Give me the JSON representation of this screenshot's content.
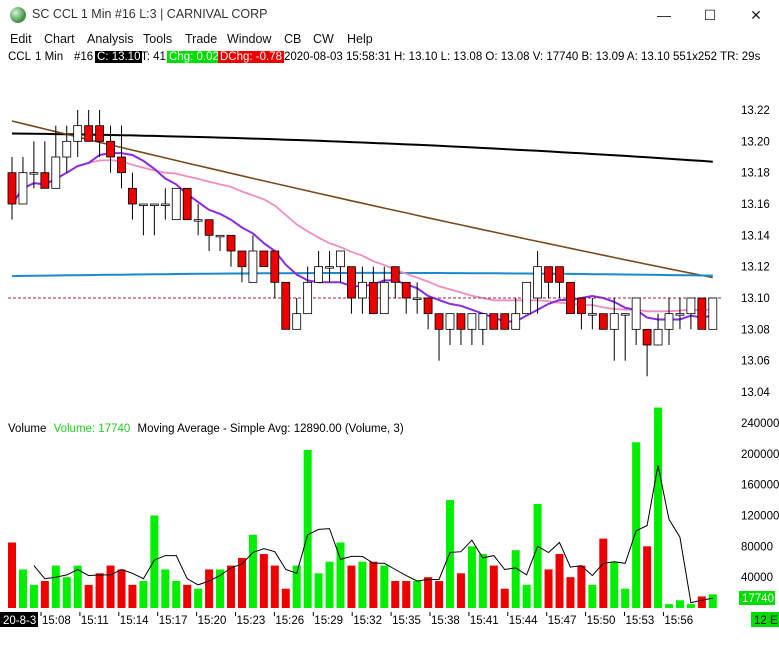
{
  "window": {
    "title": "SC CCL  1 Min  #16  L:3 | CARNIVAL CORP",
    "minimize_label": "—",
    "maximize_label": "☐",
    "close_label": "✕"
  },
  "menu": [
    "Edit",
    "Chart",
    "Analysis",
    "Tools",
    "Trade",
    "Window",
    "CB",
    "CW",
    "Help"
  ],
  "info": {
    "symbol": "CCL",
    "interval": "1 Min",
    "chart_num": "#16",
    "close": "C: 13.10",
    "ticks": "T: 41",
    "chg": "Chg: 0.02",
    "dchg": "DChg: -0.78",
    "rest": "2020-08-03 15:58:31 H: 13.10 L: 13.08 O: 13.08 V: 17740 B: 13.09 A: 13.10 551x252 TR: 29s"
  },
  "volume_legend": {
    "label": "Volume",
    "value": "Volume: 17740",
    "ma": "Moving Average - Simple  Avg: 12890.00  (Volume, 3)"
  },
  "colors": {
    "up": "#ffffff",
    "down": "#ee0000",
    "vol_up": "#00ee00",
    "vol_down": "#ee0000",
    "ma_purple": "#8a2be2",
    "ma_pink": "#f08cc0",
    "ma_brown": "#7a4a1a",
    "ma_black": "#000000",
    "ma_blue": "#1a8ad0",
    "last_line": "#a02050"
  },
  "chart_data": {
    "type": "candlestick",
    "price_ticks": [
      "13.22",
      "13.20",
      "13.18",
      "13.16",
      "13.14",
      "13.12",
      "13.10",
      "13.08",
      "13.06",
      "13.04"
    ],
    "price_range": [
      13.04,
      13.22
    ],
    "volume_ticks": [
      "240000",
      "200000",
      "160000",
      "120000",
      "80000",
      "40000"
    ],
    "volume_range": [
      0,
      240000
    ],
    "last_volume_label": "17740",
    "date_label": "20-8-3",
    "time_labels": [
      "15:08",
      "15:11",
      "15:14",
      "15:17",
      "15:20",
      "15:23",
      "15:26",
      "15:29",
      "15:32",
      "15:35",
      "15:38",
      "15:41",
      "15:44",
      "15:47",
      "15:50",
      "15:53",
      "15:56"
    ],
    "corner_label": "12 E",
    "candles": [
      {
        "o": 13.18,
        "h": 13.19,
        "l": 13.15,
        "c": 13.16
      },
      {
        "o": 13.16,
        "h": 13.19,
        "l": 13.16,
        "c": 13.18
      },
      {
        "o": 13.18,
        "h": 13.2,
        "l": 13.17,
        "c": 13.18
      },
      {
        "o": 13.18,
        "h": 13.2,
        "l": 13.17,
        "c": 13.17
      },
      {
        "o": 13.17,
        "h": 13.21,
        "l": 13.17,
        "c": 13.19
      },
      {
        "o": 13.19,
        "h": 13.21,
        "l": 13.18,
        "c": 13.2
      },
      {
        "o": 13.2,
        "h": 13.22,
        "l": 13.19,
        "c": 13.21
      },
      {
        "o": 13.21,
        "h": 13.22,
        "l": 13.2,
        "c": 13.2
      },
      {
        "o": 13.21,
        "h": 13.22,
        "l": 13.19,
        "c": 13.2
      },
      {
        "o": 13.2,
        "h": 13.21,
        "l": 13.18,
        "c": 13.19
      },
      {
        "o": 13.19,
        "h": 13.21,
        "l": 13.17,
        "c": 13.18
      },
      {
        "o": 13.17,
        "h": 13.18,
        "l": 13.15,
        "c": 13.16
      },
      {
        "o": 13.16,
        "h": 13.16,
        "l": 13.14,
        "c": 13.16
      },
      {
        "o": 13.16,
        "h": 13.16,
        "l": 13.14,
        "c": 13.16
      },
      {
        "o": 13.16,
        "h": 13.17,
        "l": 13.15,
        "c": 13.16
      },
      {
        "o": 13.15,
        "h": 13.17,
        "l": 13.15,
        "c": 13.17
      },
      {
        "o": 13.17,
        "h": 13.17,
        "l": 13.15,
        "c": 13.15
      },
      {
        "o": 13.15,
        "h": 13.16,
        "l": 13.14,
        "c": 13.15
      },
      {
        "o": 13.15,
        "h": 13.15,
        "l": 13.13,
        "c": 13.14
      },
      {
        "o": 13.14,
        "h": 13.14,
        "l": 13.13,
        "c": 13.14
      },
      {
        "o": 13.14,
        "h": 13.14,
        "l": 13.12,
        "c": 13.13
      },
      {
        "o": 13.13,
        "h": 13.13,
        "l": 13.11,
        "c": 13.12
      },
      {
        "o": 13.11,
        "h": 13.14,
        "l": 13.11,
        "c": 13.13
      },
      {
        "o": 13.13,
        "h": 13.13,
        "l": 13.12,
        "c": 13.12
      },
      {
        "o": 13.13,
        "h": 13.13,
        "l": 13.1,
        "c": 13.11
      },
      {
        "o": 13.11,
        "h": 13.11,
        "l": 13.08,
        "c": 13.08
      },
      {
        "o": 13.08,
        "h": 13.1,
        "l": 13.08,
        "c": 13.09
      },
      {
        "o": 13.09,
        "h": 13.12,
        "l": 13.09,
        "c": 13.11
      },
      {
        "o": 13.11,
        "h": 13.13,
        "l": 13.11,
        "c": 13.12
      },
      {
        "o": 13.12,
        "h": 13.13,
        "l": 13.11,
        "c": 13.12
      },
      {
        "o": 13.12,
        "h": 13.13,
        "l": 13.11,
        "c": 13.13
      },
      {
        "o": 13.12,
        "h": 13.12,
        "l": 13.09,
        "c": 13.1
      },
      {
        "o": 13.1,
        "h": 13.12,
        "l": 13.09,
        "c": 13.11
      },
      {
        "o": 13.11,
        "h": 13.12,
        "l": 13.09,
        "c": 13.09
      },
      {
        "o": 13.09,
        "h": 13.12,
        "l": 13.09,
        "c": 13.11
      },
      {
        "o": 13.12,
        "h": 13.12,
        "l": 13.1,
        "c": 13.11
      },
      {
        "o": 13.11,
        "h": 13.11,
        "l": 13.09,
        "c": 13.1
      },
      {
        "o": 13.1,
        "h": 13.11,
        "l": 13.09,
        "c": 13.1
      },
      {
        "o": 13.1,
        "h": 13.1,
        "l": 13.08,
        "c": 13.09
      },
      {
        "o": 13.09,
        "h": 13.09,
        "l": 13.06,
        "c": 13.08
      },
      {
        "o": 13.08,
        "h": 13.09,
        "l": 13.07,
        "c": 13.09
      },
      {
        "o": 13.09,
        "h": 13.09,
        "l": 13.07,
        "c": 13.08
      },
      {
        "o": 13.08,
        "h": 13.09,
        "l": 13.07,
        "c": 13.09
      },
      {
        "o": 13.08,
        "h": 13.09,
        "l": 13.07,
        "c": 13.09
      },
      {
        "o": 13.09,
        "h": 13.09,
        "l": 13.08,
        "c": 13.08
      },
      {
        "o": 13.09,
        "h": 13.09,
        "l": 13.08,
        "c": 13.08
      },
      {
        "o": 13.08,
        "h": 13.1,
        "l": 13.08,
        "c": 13.09
      },
      {
        "o": 13.09,
        "h": 13.11,
        "l": 13.09,
        "c": 13.11
      },
      {
        "o": 13.1,
        "h": 13.13,
        "l": 13.09,
        "c": 13.12
      },
      {
        "o": 13.12,
        "h": 13.12,
        "l": 13.1,
        "c": 13.11
      },
      {
        "o": 13.12,
        "h": 13.12,
        "l": 13.1,
        "c": 13.11
      },
      {
        "o": 13.11,
        "h": 13.11,
        "l": 13.09,
        "c": 13.09
      },
      {
        "o": 13.1,
        "h": 13.1,
        "l": 13.08,
        "c": 13.09
      },
      {
        "o": 13.09,
        "h": 13.1,
        "l": 13.08,
        "c": 13.09
      },
      {
        "o": 13.09,
        "h": 13.09,
        "l": 13.08,
        "c": 13.08
      },
      {
        "o": 13.08,
        "h": 13.1,
        "l": 13.06,
        "c": 13.09
      },
      {
        "o": 13.09,
        "h": 13.09,
        "l": 13.06,
        "c": 13.09
      },
      {
        "o": 13.08,
        "h": 13.1,
        "l": 13.07,
        "c": 13.1
      },
      {
        "o": 13.08,
        "h": 13.08,
        "l": 13.05,
        "c": 13.07
      },
      {
        "o": 13.07,
        "h": 13.09,
        "l": 13.07,
        "c": 13.08
      },
      {
        "o": 13.08,
        "h": 13.1,
        "l": 13.07,
        "c": 13.09
      },
      {
        "o": 13.09,
        "h": 13.1,
        "l": 13.08,
        "c": 13.09
      },
      {
        "o": 13.09,
        "h": 13.1,
        "l": 13.08,
        "c": 13.1
      },
      {
        "o": 13.1,
        "h": 13.1,
        "l": 13.08,
        "c": 13.08
      },
      {
        "o": 13.08,
        "h": 13.1,
        "l": 13.08,
        "c": 13.1
      }
    ],
    "volumes": [
      85000,
      50000,
      30000,
      35000,
      55000,
      40000,
      55000,
      30000,
      45000,
      55000,
      50000,
      30000,
      35000,
      120000,
      50000,
      35000,
      30000,
      25000,
      50000,
      50000,
      55000,
      65000,
      95000,
      70000,
      55000,
      25000,
      55000,
      205000,
      45000,
      60000,
      85000,
      55000,
      60000,
      60000,
      55000,
      35000,
      35000,
      35000,
      40000,
      35000,
      140000,
      45000,
      80000,
      70000,
      55000,
      25000,
      75000,
      30000,
      135000,
      50000,
      70000,
      40000,
      55000,
      30000,
      90000,
      60000,
      25000,
      215000,
      80000,
      260000,
      5000,
      10000,
      5000,
      15000,
      17740
    ],
    "vol_ma": [
      null,
      null,
      55000,
      38000,
      40000,
      43000,
      50000,
      42000,
      43000,
      43000,
      50000,
      45000,
      38000,
      62000,
      68000,
      68000,
      38000,
      30000,
      35000,
      42000,
      52000,
      57000,
      72000,
      77000,
      73000,
      50000,
      45000,
      95000,
      102000,
      103000,
      63000,
      67000,
      67000,
      58000,
      58000,
      50000,
      42000,
      35000,
      37000,
      37000,
      72000,
      73000,
      88000,
      65000,
      68000,
      50000,
      52000,
      43000,
      80000,
      72000,
      85000,
      53000,
      55000,
      42000,
      58000,
      60000,
      58000,
      100000,
      107000,
      185000,
      115000,
      92000,
      7000,
      10000,
      12890
    ]
  }
}
